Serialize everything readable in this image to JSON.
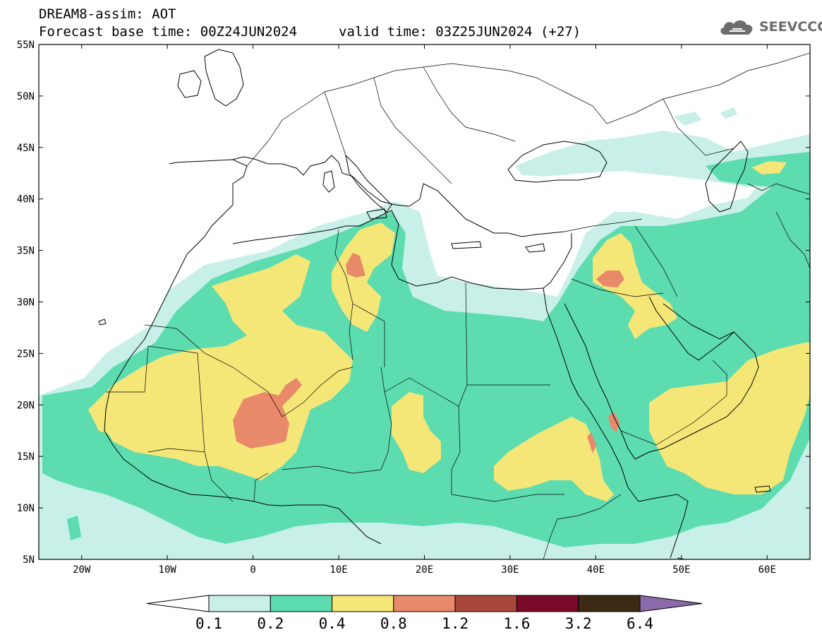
{
  "header": {
    "title_line_1": "DREAM8-assim: AOT",
    "title_line_2": "Forecast base time: 00Z24JUN2024",
    "valid_time": "valid time: 03Z25JUN2024 (+27)"
  },
  "logo": {
    "text": "SEEVCCC",
    "icon": "cloud-icon"
  },
  "map": {
    "lat_labels": [
      "55N",
      "50N",
      "45N",
      "40N",
      "35N",
      "30N",
      "25N",
      "20N",
      "15N",
      "10N",
      "5N"
    ],
    "lon_labels": [
      "20W",
      "10W",
      "0",
      "10E",
      "20E",
      "30E",
      "40E",
      "50E",
      "60E"
    ],
    "lat_range": [
      5,
      55
    ],
    "lon_range": [
      -25,
      65
    ]
  },
  "colorbar": {
    "levels": [
      "0.1",
      "0.2",
      "0.4",
      "0.8",
      "1.2",
      "1.6",
      "3.2",
      "6.4"
    ],
    "colors": [
      "#ffffff",
      "#c8f0e8",
      "#5ddcb0",
      "#f5e678",
      "#e8896a",
      "#a8473a",
      "#7a0a2a",
      "#3d2a14",
      "#8a6aa8"
    ]
  },
  "colors": {
    "c01": "#c8f0e8",
    "c02": "#5ddcb0",
    "c04": "#f5e678",
    "c08": "#e8896a",
    "c12": "#a8473a"
  }
}
